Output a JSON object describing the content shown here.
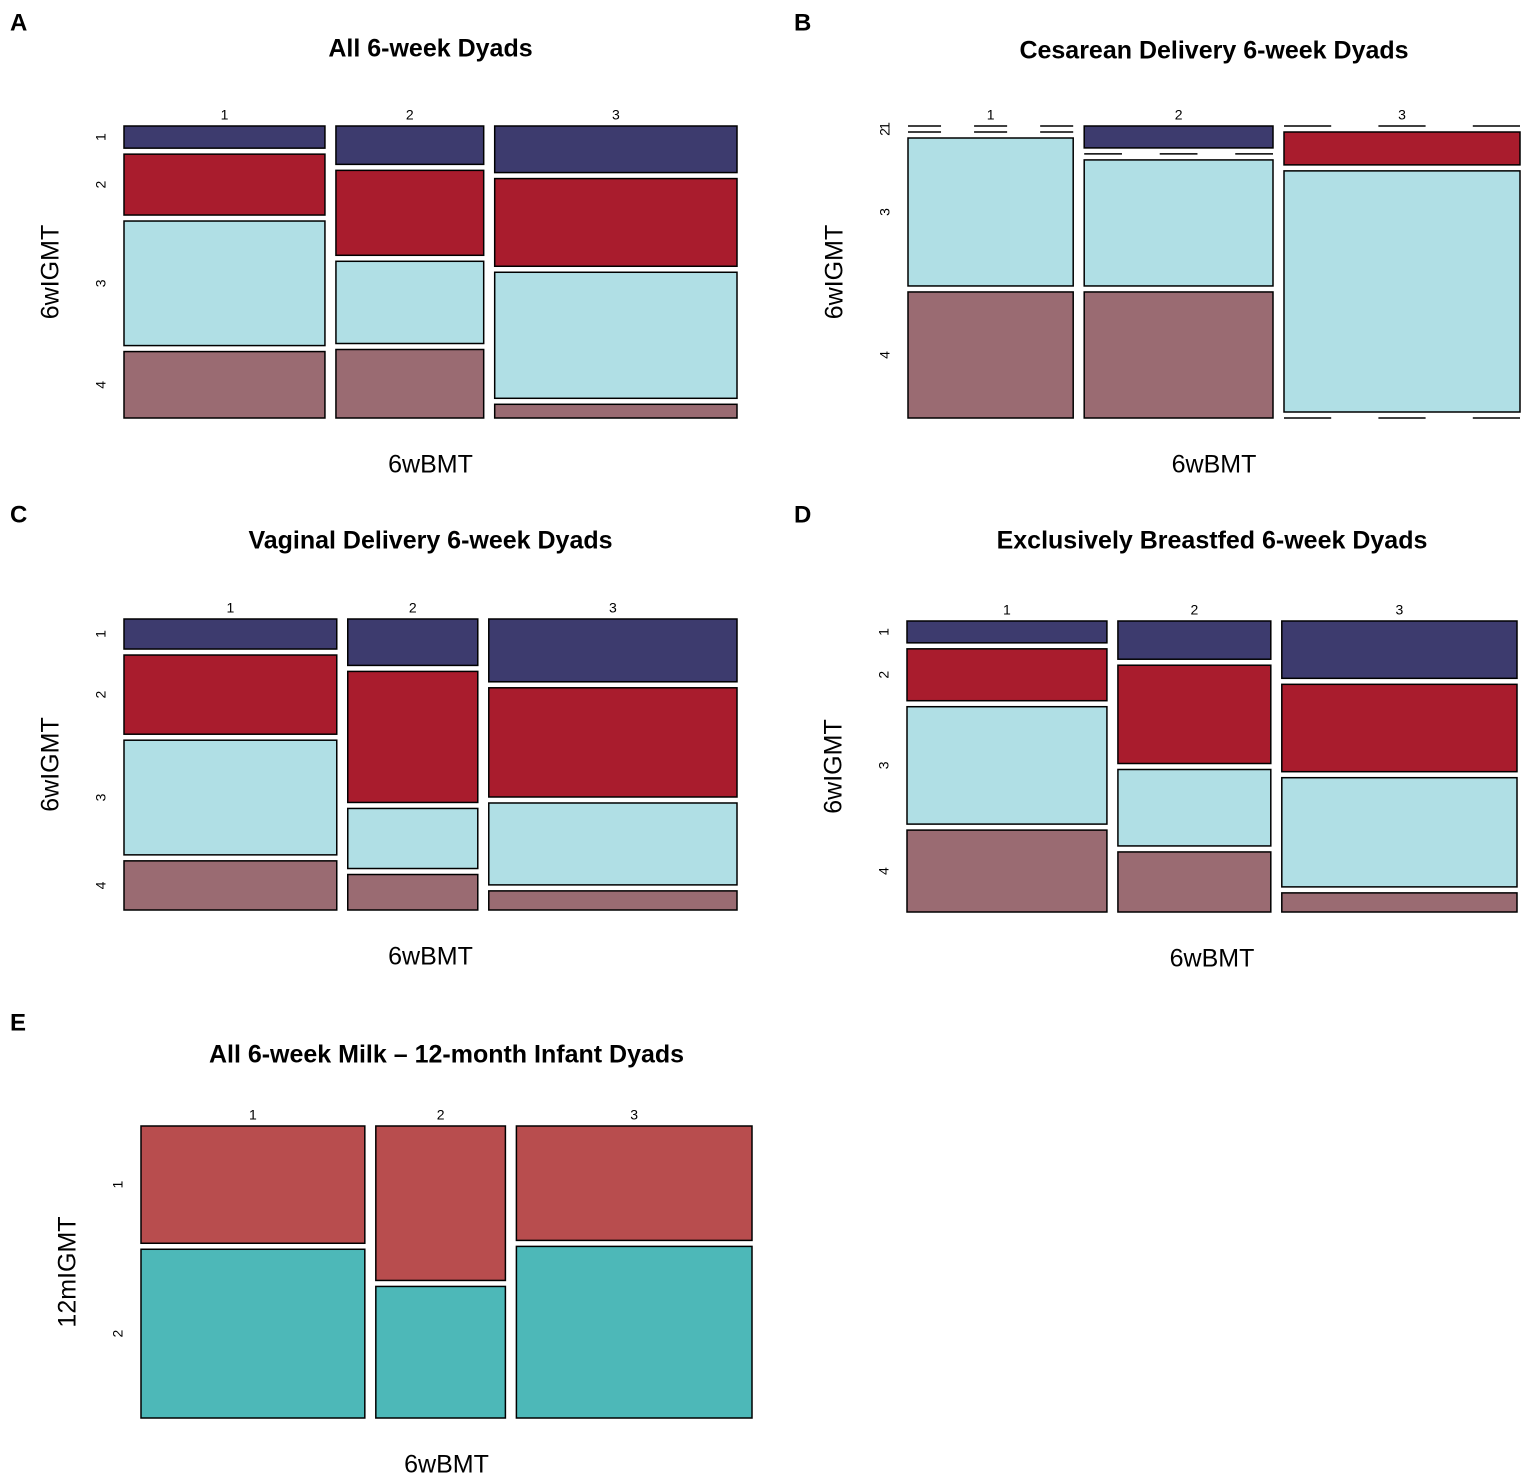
{
  "chart_data": [
    {
      "type": "mosaic",
      "panel": "A",
      "title": "All 6-week Dyads",
      "xlabel": "6wBMT",
      "ylabel": "6wIGMT",
      "categories": [
        "1",
        "2",
        "3"
      ],
      "widths": [
        34,
        25,
        41
      ],
      "series": [
        {
          "name": "1",
          "color": "#3d3b6e",
          "values": [
            8,
            14,
            17
          ]
        },
        {
          "name": "2",
          "color": "#a91c2d",
          "values": [
            22,
            31,
            32
          ]
        },
        {
          "name": "3",
          "color": "#b0dfe5",
          "values": [
            45,
            30,
            46
          ]
        },
        {
          "name": "4",
          "color": "#9a6b72",
          "values": [
            24,
            25,
            5
          ]
        }
      ]
    },
    {
      "type": "mosaic",
      "panel": "B",
      "title": "Cesarean Delivery 6-week Dyads",
      "xlabel": "6wBMT",
      "ylabel": "6wIGMT",
      "categories": [
        "1",
        "2",
        "3"
      ],
      "widths": [
        28,
        32,
        40
      ],
      "series": [
        {
          "name": "1",
          "color": "#3d3b6e",
          "values": [
            0,
            8,
            0
          ]
        },
        {
          "name": "2",
          "color": "#a91c2d",
          "values": [
            0,
            0,
            12
          ]
        },
        {
          "name": "3",
          "color": "#b0dfe5",
          "values": [
            54,
            46,
            88
          ]
        },
        {
          "name": "4",
          "color": "#9a6b72",
          "values": [
            46,
            46,
            0
          ]
        }
      ]
    },
    {
      "type": "mosaic",
      "panel": "C",
      "title": "Vaginal Delivery 6-week Dyads",
      "xlabel": "6wBMT",
      "ylabel": "6wIGMT",
      "categories": [
        "1",
        "2",
        "3"
      ],
      "widths": [
        36,
        22,
        42
      ],
      "series": [
        {
          "name": "1",
          "color": "#3d3b6e",
          "values": [
            11,
            17,
            23
          ]
        },
        {
          "name": "2",
          "color": "#a91c2d",
          "values": [
            29,
            48,
            40
          ]
        },
        {
          "name": "3",
          "color": "#b0dfe5",
          "values": [
            42,
            22,
            30
          ]
        },
        {
          "name": "4",
          "color": "#9a6b72",
          "values": [
            18,
            13,
            7
          ]
        }
      ]
    },
    {
      "type": "mosaic",
      "panel": "D",
      "title": "Exclusively Breastfed 6-week Dyads",
      "xlabel": "6wBMT",
      "ylabel": "6wIGMT",
      "categories": [
        "1",
        "2",
        "3"
      ],
      "widths": [
        34,
        26,
        40
      ],
      "series": [
        {
          "name": "1",
          "color": "#3d3b6e",
          "values": [
            8,
            14,
            21
          ]
        },
        {
          "name": "2",
          "color": "#a91c2d",
          "values": [
            19,
            36,
            32
          ]
        },
        {
          "name": "3",
          "color": "#b0dfe5",
          "values": [
            43,
            28,
            40
          ]
        },
        {
          "name": "4",
          "color": "#9a6b72",
          "values": [
            30,
            22,
            7
          ]
        }
      ]
    },
    {
      "type": "mosaic",
      "panel": "E",
      "title": "All 6-week Milk – 12-month Infant Dyads",
      "xlabel": "6wBMT",
      "ylabel": "12mIGMT",
      "categories": [
        "1",
        "2",
        "3"
      ],
      "widths": [
        38,
        22,
        40
      ],
      "series": [
        {
          "name": "1",
          "color": "#b84d4e",
          "values": [
            41,
            54,
            40
          ]
        },
        {
          "name": "2",
          "color": "#4db8b8",
          "values": [
            59,
            46,
            60
          ]
        }
      ]
    }
  ]
}
